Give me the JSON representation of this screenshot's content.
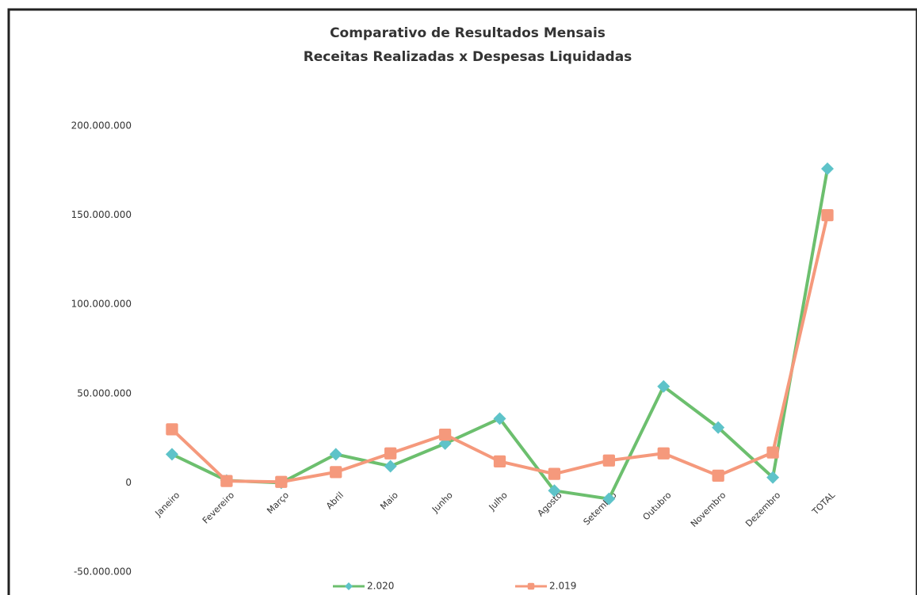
{
  "chart_data": {
    "type": "line",
    "title": "Comparativo de Resultados Mensais",
    "subtitle": "Receitas Realizadas x Despesas Liquidadas",
    "categories": [
      "Janeiro",
      "Fevereiro",
      "Março",
      "Abril",
      "Maio",
      "Junho",
      "Julho",
      "Agosto",
      "Setembro",
      "Outubro",
      "Novembro",
      "Dezembro",
      "TOTAL"
    ],
    "series": [
      {
        "name": "2.020",
        "color": "#6cbf6e",
        "marker": "diamond",
        "marker_color": "#5ec3c9",
        "values": [
          16000000,
          1300000,
          0,
          16000000,
          9300000,
          22000000,
          36000000,
          -4400000,
          -9000000,
          54000000,
          31000000,
          3000000,
          176000000
        ]
      },
      {
        "name": "2.019",
        "color": "#f5997c",
        "marker": "square",
        "marker_color": "#f5997c",
        "values": [
          30000000,
          1000000,
          500000,
          6000000,
          16500000,
          27000000,
          12000000,
          5000000,
          12500000,
          16500000,
          4000000,
          17000000,
          150000000
        ]
      }
    ],
    "ylim": [
      -50000000,
      200000000
    ],
    "yticks": [
      {
        "value": -50000000,
        "label": "-50.000.000"
      },
      0,
      {
        "value": 50000000,
        "label": "50.000.000"
      },
      {
        "value": 100000000,
        "label": "100.000.000"
      },
      {
        "value": 150000000,
        "label": "150.000.000"
      },
      {
        "value": 200000000,
        "label": "200.000.000"
      }
    ],
    "grid": false,
    "legend": "bottom"
  }
}
